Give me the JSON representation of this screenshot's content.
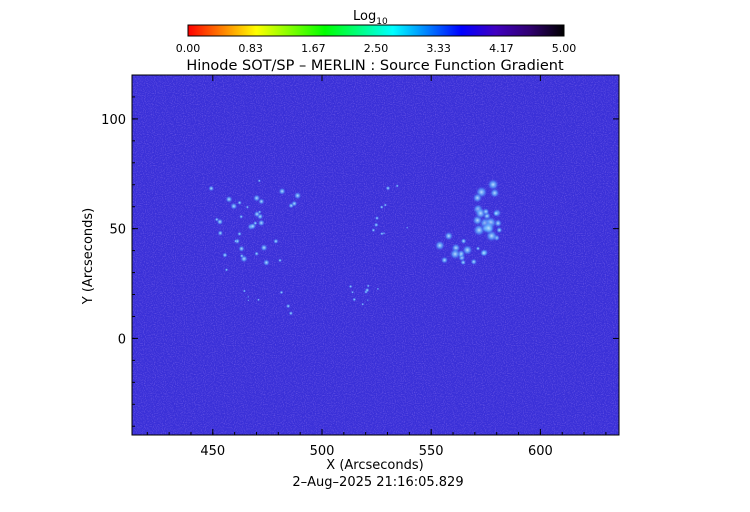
{
  "colorbar": {
    "label": "Log",
    "label_sub": "10",
    "ticks": [
      "0.00",
      "0.83",
      "1.67",
      "2.50",
      "3.33",
      "4.17",
      "5.00"
    ],
    "range": [
      0,
      5
    ],
    "colormap": [
      "#ff0000",
      "#ff8000",
      "#ffff00",
      "#80ff00",
      "#00ff00",
      "#00ff80",
      "#00ffff",
      "#0080ff",
      "#0000ff",
      "#4000c0",
      "#300070",
      "#000000"
    ]
  },
  "chart_data": {
    "type": "heatmap",
    "title": "Hinode SOT/SP – MERLIN : Source Function Gradient",
    "xlabel": "X (Arcseconds)",
    "ylabel": "Y (Arcseconds)",
    "xlim": [
      413,
      636
    ],
    "ylim": [
      -44,
      120
    ],
    "x_ticks": [
      450,
      500,
      550,
      600
    ],
    "y_ticks": [
      0,
      50,
      100
    ],
    "background_value_log10": 4.3,
    "background_color": "#3a30d8",
    "bright_regions": [
      {
        "center": [
          575,
          55
        ],
        "approx_value_log10": 3.3
      },
      {
        "center": [
          565,
          42
        ],
        "approx_value_log10": 3.5
      },
      {
        "center": [
          470,
          58
        ],
        "approx_value_log10": 3.8
      },
      {
        "center": [
          465,
          38
        ],
        "approx_value_log10": 3.8
      }
    ]
  },
  "footer": {
    "timestamp": "2–Aug–2025 21:16:05.829"
  }
}
